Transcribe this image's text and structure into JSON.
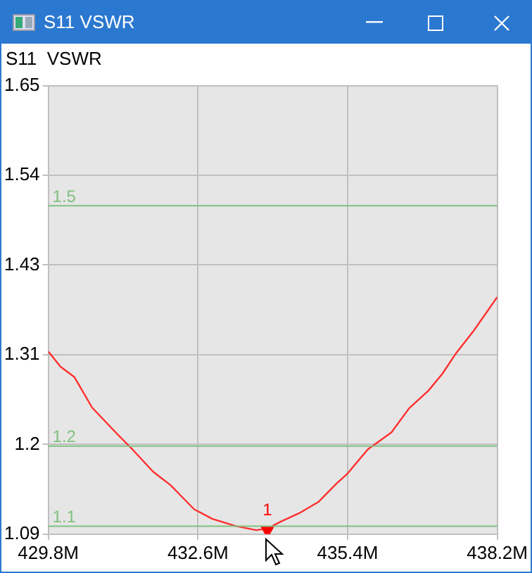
{
  "chart_data": {
    "type": "line",
    "title": "S11 VSWR",
    "subtitle": "S11  VSWR",
    "x": [
      429.8,
      430.03,
      430.29,
      430.62,
      431.06,
      431.4,
      431.76,
      432.09,
      432.53,
      432.87,
      433.31,
      433.69,
      433.9,
      434.16,
      434.49,
      434.85,
      435.19,
      435.39,
      435.78,
      436.22,
      436.55,
      436.91,
      437.17,
      437.43,
      437.76,
      438.2
    ],
    "series": [
      {
        "type": "scatter",
        "name": "1",
        "color": "#ff0000",
        "marker": "triangle",
        "x": [
          433.9
        ],
        "values": [
          1.095
        ]
      },
      {
        "color": "#ff3030",
        "values": [
          1.318,
          1.299,
          1.286,
          1.248,
          1.217,
          1.194,
          1.168,
          1.151,
          1.121,
          1.109,
          1.1,
          1.095,
          1.097,
          1.106,
          1.116,
          1.13,
          1.153,
          1.165,
          1.196,
          1.217,
          1.247,
          1.269,
          1.29,
          1.316,
          1.344,
          1.386
        ]
      }
    ],
    "xlim": [
      429.8,
      438.2
    ],
    "xticks": [
      {
        "value": 429.8,
        "label": "429.8M"
      },
      {
        "value": 432.6,
        "label": "432.6M"
      },
      {
        "value": 435.4,
        "label": "435.4M"
      },
      {
        "value": 438.2,
        "label": "438.2M"
      }
    ],
    "ylim": [
      1.09,
      1.65
    ],
    "yticks": [
      1.09,
      {
        "value": 1.202,
        "label": "1.2"
      },
      {
        "value": 1.314,
        "label": "1.31"
      },
      {
        "value": 1.426,
        "label": "1.43"
      },
      {
        "value": 1.538,
        "label": "1.54"
      },
      1.65
    ],
    "grid": true,
    "ref_lines": [
      {
        "axis": "y",
        "value": 1.5,
        "label": "1.5",
        "color": "#80c080"
      },
      {
        "axis": "y",
        "value": 1.2,
        "label": "1.2",
        "color": "#80c080"
      },
      {
        "axis": "y",
        "value": 1.1,
        "label": "1.1",
        "color": "#80c080"
      }
    ]
  }
}
